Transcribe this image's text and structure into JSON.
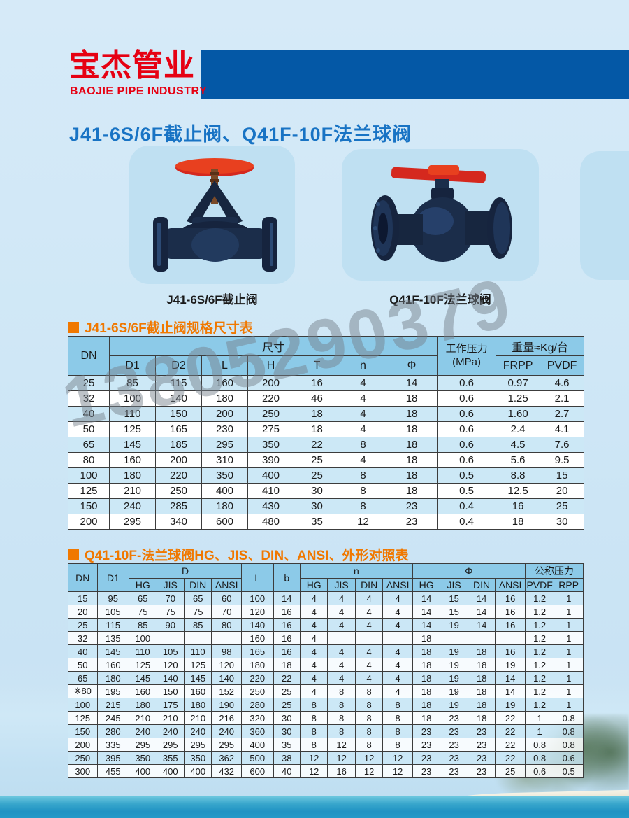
{
  "logo": {
    "cn": "宝杰管业",
    "en": "BAOJIE PIPE INDUSTRY"
  },
  "page_title": "J41-6S/6F截止阀、Q41F-10F法兰球阀",
  "products": [
    {
      "caption": "J41-6S/6F截止阀"
    },
    {
      "caption": "Q41F-10F法兰球阀"
    }
  ],
  "watermark": "13805290379",
  "colors": {
    "brand_red": "#e60113",
    "brand_blue": "#0458a6",
    "title_blue": "#1873c4",
    "accent_orange": "#f07800",
    "table_header_bg": "#8ccae8",
    "stripe_blue": "#cce8f6"
  },
  "table1": {
    "section_title": "J41-6S/6F截止阀规格尺寸表",
    "header": {
      "dn": "DN",
      "size_group": "尺寸",
      "size_sub": [
        "D1",
        "D2",
        "L",
        "H",
        "T",
        "n",
        "Φ"
      ],
      "pressure_line1": "工作压力",
      "pressure_line2": "(MPa)",
      "weight_group": "重量≈Kg/台",
      "weight_sub": [
        "FRPP",
        "PVDF"
      ]
    },
    "rows": [
      [
        "25",
        "85",
        "115",
        "160",
        "200",
        "16",
        "4",
        "14",
        "0.6",
        "0.97",
        "4.6"
      ],
      [
        "32",
        "100",
        "140",
        "180",
        "220",
        "46",
        "4",
        "18",
        "0.6",
        "1.25",
        "2.1"
      ],
      [
        "40",
        "110",
        "150",
        "200",
        "250",
        "18",
        "4",
        "18",
        "0.6",
        "1.60",
        "2.7"
      ],
      [
        "50",
        "125",
        "165",
        "230",
        "275",
        "18",
        "4",
        "18",
        "0.6",
        "2.4",
        "4.1"
      ],
      [
        "65",
        "145",
        "185",
        "295",
        "350",
        "22",
        "8",
        "18",
        "0.6",
        "4.5",
        "7.6"
      ],
      [
        "80",
        "160",
        "200",
        "310",
        "390",
        "25",
        "4",
        "18",
        "0.6",
        "5.6",
        "9.5"
      ],
      [
        "100",
        "180",
        "220",
        "350",
        "400",
        "25",
        "8",
        "18",
        "0.5",
        "8.8",
        "15"
      ],
      [
        "125",
        "210",
        "250",
        "400",
        "410",
        "30",
        "8",
        "18",
        "0.5",
        "12.5",
        "20"
      ],
      [
        "150",
        "240",
        "285",
        "180",
        "430",
        "30",
        "8",
        "23",
        "0.4",
        "16",
        "25"
      ],
      [
        "200",
        "295",
        "340",
        "600",
        "480",
        "35",
        "12",
        "23",
        "0.4",
        "18",
        "30"
      ]
    ]
  },
  "table2": {
    "section_title": "Q41-10F-法兰球阀HG、JIS、DIN、ANSI、外形对照表",
    "header": {
      "dn": "DN",
      "d1": "D1",
      "d_group": "D",
      "l": "L",
      "b": "b",
      "n_group": "n",
      "phi_group": "Φ",
      "pressure_group": "公称压力",
      "std": [
        "HG",
        "JIS",
        "DIN",
        "ANSI"
      ],
      "pressure_sub": [
        "PVDF",
        "RPP"
      ]
    },
    "rows": [
      [
        "15",
        "95",
        "65",
        "70",
        "65",
        "60",
        "100",
        "14",
        "4",
        "4",
        "4",
        "4",
        "14",
        "15",
        "14",
        "16",
        "1.2",
        "1"
      ],
      [
        "20",
        "105",
        "75",
        "75",
        "75",
        "70",
        "120",
        "16",
        "4",
        "4",
        "4",
        "4",
        "14",
        "15",
        "14",
        "16",
        "1.2",
        "1"
      ],
      [
        "25",
        "115",
        "85",
        "90",
        "85",
        "80",
        "140",
        "16",
        "4",
        "4",
        "4",
        "4",
        "14",
        "19",
        "14",
        "16",
        "1.2",
        "1"
      ],
      [
        "32",
        "135",
        "100",
        "",
        "",
        "",
        "160",
        "16",
        "4",
        "",
        "",
        "",
        "18",
        "",
        "",
        "",
        "1.2",
        "1"
      ],
      [
        "40",
        "145",
        "110",
        "105",
        "110",
        "98",
        "165",
        "16",
        "4",
        "4",
        "4",
        "4",
        "18",
        "19",
        "18",
        "16",
        "1.2",
        "1"
      ],
      [
        "50",
        "160",
        "125",
        "120",
        "125",
        "120",
        "180",
        "18",
        "4",
        "4",
        "4",
        "4",
        "18",
        "19",
        "18",
        "19",
        "1.2",
        "1"
      ],
      [
        "65",
        "180",
        "145",
        "140",
        "145",
        "140",
        "220",
        "22",
        "4",
        "4",
        "4",
        "4",
        "18",
        "19",
        "18",
        "14",
        "1.2",
        "1"
      ],
      [
        "※80",
        "195",
        "160",
        "150",
        "160",
        "152",
        "250",
        "25",
        "4",
        "8",
        "8",
        "4",
        "18",
        "19",
        "18",
        "14",
        "1.2",
        "1"
      ],
      [
        "100",
        "215",
        "180",
        "175",
        "180",
        "190",
        "280",
        "25",
        "8",
        "8",
        "8",
        "8",
        "18",
        "19",
        "18",
        "19",
        "1.2",
        "1"
      ],
      [
        "125",
        "245",
        "210",
        "210",
        "210",
        "216",
        "320",
        "30",
        "8",
        "8",
        "8",
        "8",
        "18",
        "23",
        "18",
        "22",
        "1",
        "0.8"
      ],
      [
        "150",
        "280",
        "240",
        "240",
        "240",
        "240",
        "360",
        "30",
        "8",
        "8",
        "8",
        "8",
        "23",
        "23",
        "23",
        "22",
        "1",
        "0.8"
      ],
      [
        "200",
        "335",
        "295",
        "295",
        "295",
        "295",
        "400",
        "35",
        "8",
        "12",
        "8",
        "8",
        "23",
        "23",
        "23",
        "22",
        "0.8",
        "0.8"
      ],
      [
        "250",
        "395",
        "350",
        "355",
        "350",
        "362",
        "500",
        "38",
        "12",
        "12",
        "12",
        "12",
        "23",
        "23",
        "23",
        "22",
        "0.8",
        "0.6"
      ],
      [
        "300",
        "455",
        "400",
        "400",
        "400",
        "432",
        "600",
        "40",
        "12",
        "16",
        "12",
        "12",
        "23",
        "23",
        "23",
        "25",
        "0.6",
        "0.5"
      ]
    ]
  }
}
